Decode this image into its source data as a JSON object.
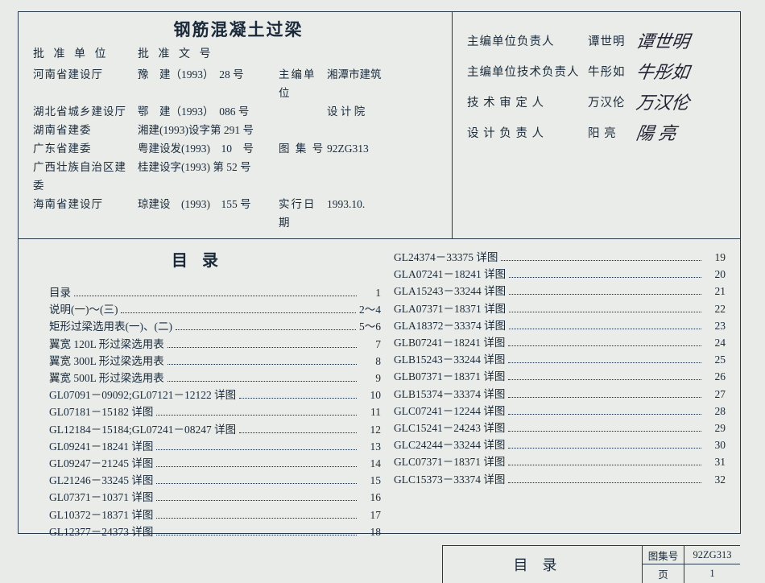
{
  "doc_title": "钢筋混凝土过梁",
  "approval_header": {
    "org": "批 准 单 位",
    "docno": "批 准 文 号"
  },
  "approvals": [
    {
      "org": "河南省建设厅",
      "docno": "豫　建（1993）　28 号",
      "lbl": "主编单位",
      "val": "湘潭市建筑"
    },
    {
      "org": "湖北省城乡建设厅",
      "docno": "鄂　建（1993）　086 号",
      "lbl": "",
      "val": "设 计 院"
    },
    {
      "org": "湖南省建委",
      "docno": "湘建(1993)设字第 291 号",
      "lbl": "",
      "val": ""
    },
    {
      "org": "广东省建委",
      "docno": "粤建设发(1993)　10　号",
      "lbl": "图 集 号",
      "val": "92ZG313"
    },
    {
      "org": "广西壮族自治区建委",
      "docno": "桂建设字(1993) 第 52 号",
      "lbl": "",
      "val": ""
    },
    {
      "org": "海南省建设厅",
      "docno": "琼建设　(1993)　155 号",
      "lbl": "实行日期",
      "val": "1993.10."
    }
  ],
  "responsibles": [
    {
      "lbl": "主编单位负责人",
      "name": "谭世明",
      "sig": "谭世明"
    },
    {
      "lbl": "主编单位技术负责人",
      "name": "牛彤如",
      "sig": "牛彤如"
    },
    {
      "lbl": "技 术 审 定 人",
      "name": "万汉伦",
      "sig": "万汉伦"
    },
    {
      "lbl": "设 计 负 责 人",
      "name": "阳 亮",
      "sig": "陽 亮"
    }
  ],
  "toc_title": "目录",
  "toc_left": [
    {
      "label": "目录",
      "page": "1"
    },
    {
      "label": "说明(一)～(三)",
      "page": "2～4"
    },
    {
      "label": "矩形过梁选用表(一)、(二)",
      "page": "5～6"
    },
    {
      "label": "翼宽 120L 形过梁选用表",
      "page": "7"
    },
    {
      "label": "翼宽 300L 形过梁选用表",
      "page": "8"
    },
    {
      "label": "翼宽 500L 形过梁选用表",
      "page": "9"
    },
    {
      "label": "GL07091－09092;GL07121－12122 详图",
      "page": "10"
    },
    {
      "label": "GL07181－15182 详图",
      "page": "11"
    },
    {
      "label": "GL12184－15184;GL07241－08247 详图",
      "page": "12"
    },
    {
      "label": "GL09241－18241 详图",
      "page": "13"
    },
    {
      "label": "GL09247－21245 详图",
      "page": "14"
    },
    {
      "label": "GL21246－33245 详图",
      "page": "15"
    },
    {
      "label": "GL07371－10371 详图",
      "page": "16"
    },
    {
      "label": "GL10372－18371 详图",
      "page": "17"
    },
    {
      "label": "GL12377－24373 详图",
      "page": "18"
    }
  ],
  "toc_right": [
    {
      "label": "GL24374－33375 详图",
      "page": "19"
    },
    {
      "label": "GLA07241－18241 详图",
      "page": "20"
    },
    {
      "label": "GLA15243－33244 详图",
      "page": "21"
    },
    {
      "label": "GLA07371－18371 详图",
      "page": "22"
    },
    {
      "label": "GLA18372－33374 详图",
      "page": "23"
    },
    {
      "label": "GLB07241－18241 详图",
      "page": "24"
    },
    {
      "label": "GLB15243－33244 详图",
      "page": "25"
    },
    {
      "label": "GLB07371－18371 详图",
      "page": "26"
    },
    {
      "label": "GLB15374－33374 详图",
      "page": "27"
    },
    {
      "label": "GLC07241－12244 详图",
      "page": "28"
    },
    {
      "label": "GLC15241－24243 详图",
      "page": "29"
    },
    {
      "label": "GLC24244－33244 详图",
      "page": "30"
    },
    {
      "label": "GLC07371－18371 详图",
      "page": "31"
    },
    {
      "label": "GLC15373－33374 详图",
      "page": "32"
    }
  ],
  "footer": {
    "title": "目录",
    "atlas_lbl": "图集号",
    "atlas_val": "92ZG313",
    "page_lbl": "页",
    "page_val": "1"
  }
}
